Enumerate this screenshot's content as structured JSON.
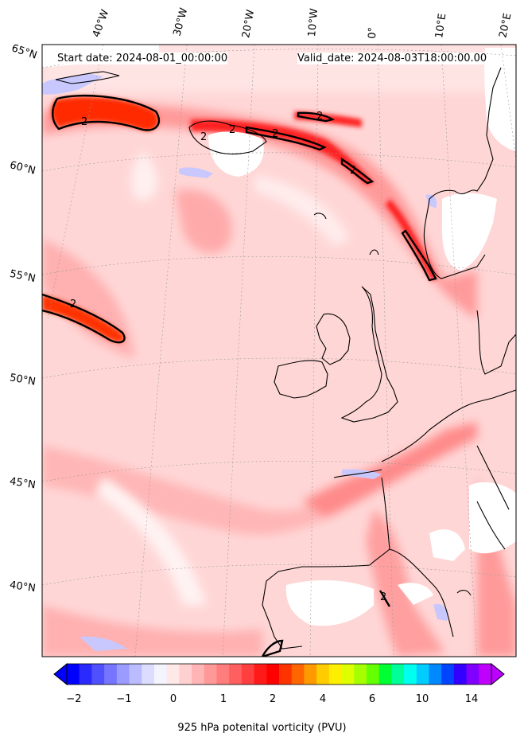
{
  "header": {
    "start_date": "Start date: 2024-08-01_00:00:00",
    "valid_date": "Valid_date: 2024-08-03T18:00:00.00"
  },
  "lon_labels": [
    "40°W",
    "30°W",
    "20°W",
    "10°W",
    "0°",
    "10°E",
    "20°E"
  ],
  "lat_labels": [
    "65°N",
    "60°N",
    "55°N",
    "50°N",
    "45°N",
    "40°N"
  ],
  "contour_labels": [
    "2",
    "2",
    "2",
    "2",
    "2",
    "2",
    "2",
    "2"
  ],
  "colorbar": {
    "title": "925 hPa potenital vorticity (PVU)",
    "ticks": [
      "−2",
      "−1",
      "0",
      "1",
      "2",
      "4",
      "6",
      "10",
      "14"
    ],
    "colors": [
      "#0000ff",
      "#2a2aff",
      "#5050ff",
      "#7575ff",
      "#9a9aff",
      "#bbbbff",
      "#dcdcff",
      "#f4f4ff",
      "#ffe8e8",
      "#ffd0d0",
      "#ffb5b5",
      "#ff9999",
      "#ff7d7d",
      "#ff5f5f",
      "#ff3f3f",
      "#ff1a1a",
      "#ff0000",
      "#ff3300",
      "#ff6600",
      "#ff9900",
      "#ffcc00",
      "#ffee00",
      "#ddff00",
      "#a6ff00",
      "#66ff00",
      "#00ff33",
      "#00ff99",
      "#00ffee",
      "#00ccff",
      "#0088ff",
      "#0044ff",
      "#3300ff",
      "#8000ff",
      "#c000ff"
    ],
    "under_color": "#0000ff",
    "over_color": "#bb00ff"
  }
}
